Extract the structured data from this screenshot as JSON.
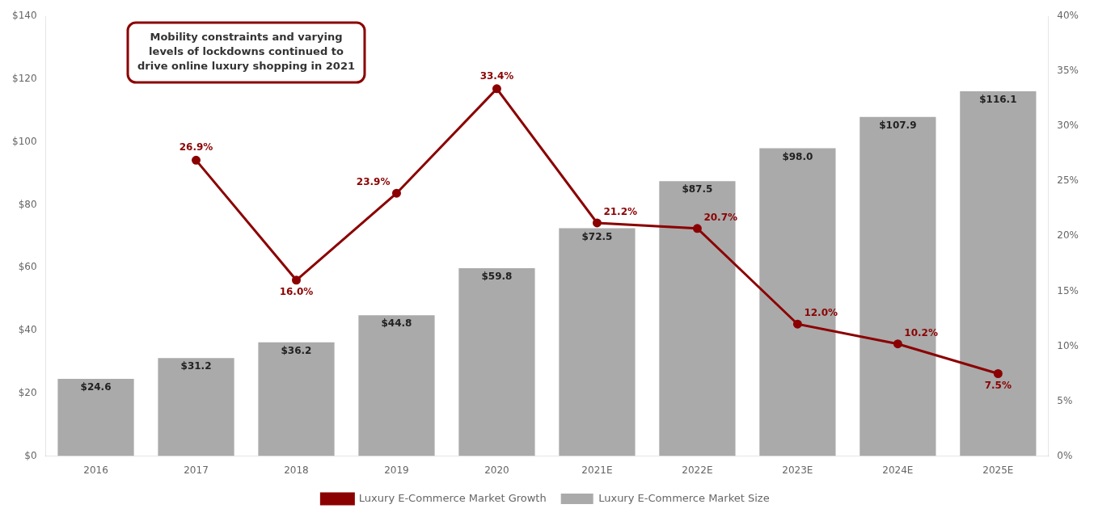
{
  "chart_data": {
    "type": "bar",
    "categories": [
      "2016",
      "2017",
      "2018",
      "2019",
      "2020",
      "2021E",
      "2022E",
      "2023E",
      "2024E",
      "2025E"
    ],
    "series": [
      {
        "name": "Luxury E-Commerce Market Size",
        "type": "bar",
        "color": "#AAAAAA",
        "values": [
          24.6,
          31.2,
          36.2,
          44.8,
          59.8,
          72.5,
          87.5,
          98.0,
          107.9,
          116.1
        ],
        "value_labels": [
          "$24.6",
          "$31.2",
          "$36.2",
          "$44.8",
          "$59.8",
          "$72.5",
          "$87.5",
          "$98.0",
          "$107.9",
          "$116.1"
        ],
        "data_labels": true
      },
      {
        "name": "Luxury E-Commerce Market Growth",
        "type": "line",
        "color": "#8B0000",
        "axis": "y2",
        "marker": "circle",
        "values": [
          null,
          26.9,
          16.0,
          23.9,
          33.4,
          21.2,
          20.7,
          12.0,
          10.2,
          7.5
        ],
        "value_labels": [
          null,
          "26.9%",
          "16.0%",
          "23.9%",
          "33.4%",
          "21.2%",
          "20.7%",
          "12.0%",
          "10.2%",
          "7.5%"
        ],
        "data_labels": true
      }
    ],
    "ylim": [
      0,
      140
    ],
    "yticks": [
      {
        "value": 0,
        "label": "$0"
      },
      {
        "value": 20,
        "label": "$20"
      },
      {
        "value": 40,
        "label": "$40"
      },
      {
        "value": 60,
        "label": "$60"
      },
      {
        "value": 80,
        "label": "$80"
      },
      {
        "value": 100,
        "label": "$100"
      },
      {
        "value": 120,
        "label": "$120"
      },
      {
        "value": 140,
        "label": "$140"
      }
    ],
    "y2lim": [
      0,
      40
    ],
    "y2ticks": [
      {
        "value": 0,
        "label": "0%"
      },
      {
        "value": 5,
        "label": "5%"
      },
      {
        "value": 10,
        "label": "10%"
      },
      {
        "value": 15,
        "label": "15%"
      },
      {
        "value": 20,
        "label": "20%"
      },
      {
        "value": 25,
        "label": "25%"
      },
      {
        "value": 30,
        "label": "30%"
      },
      {
        "value": 35,
        "label": "35%"
      },
      {
        "value": 40,
        "label": "40%"
      }
    ],
    "annotations": [
      {
        "text": "Mobility constraints and varying\nlevels of lockdowns continued to\ndrive online luxury shopping in 2021",
        "color": "#8B0000"
      }
    ],
    "legend": "bottom",
    "grid": false
  }
}
